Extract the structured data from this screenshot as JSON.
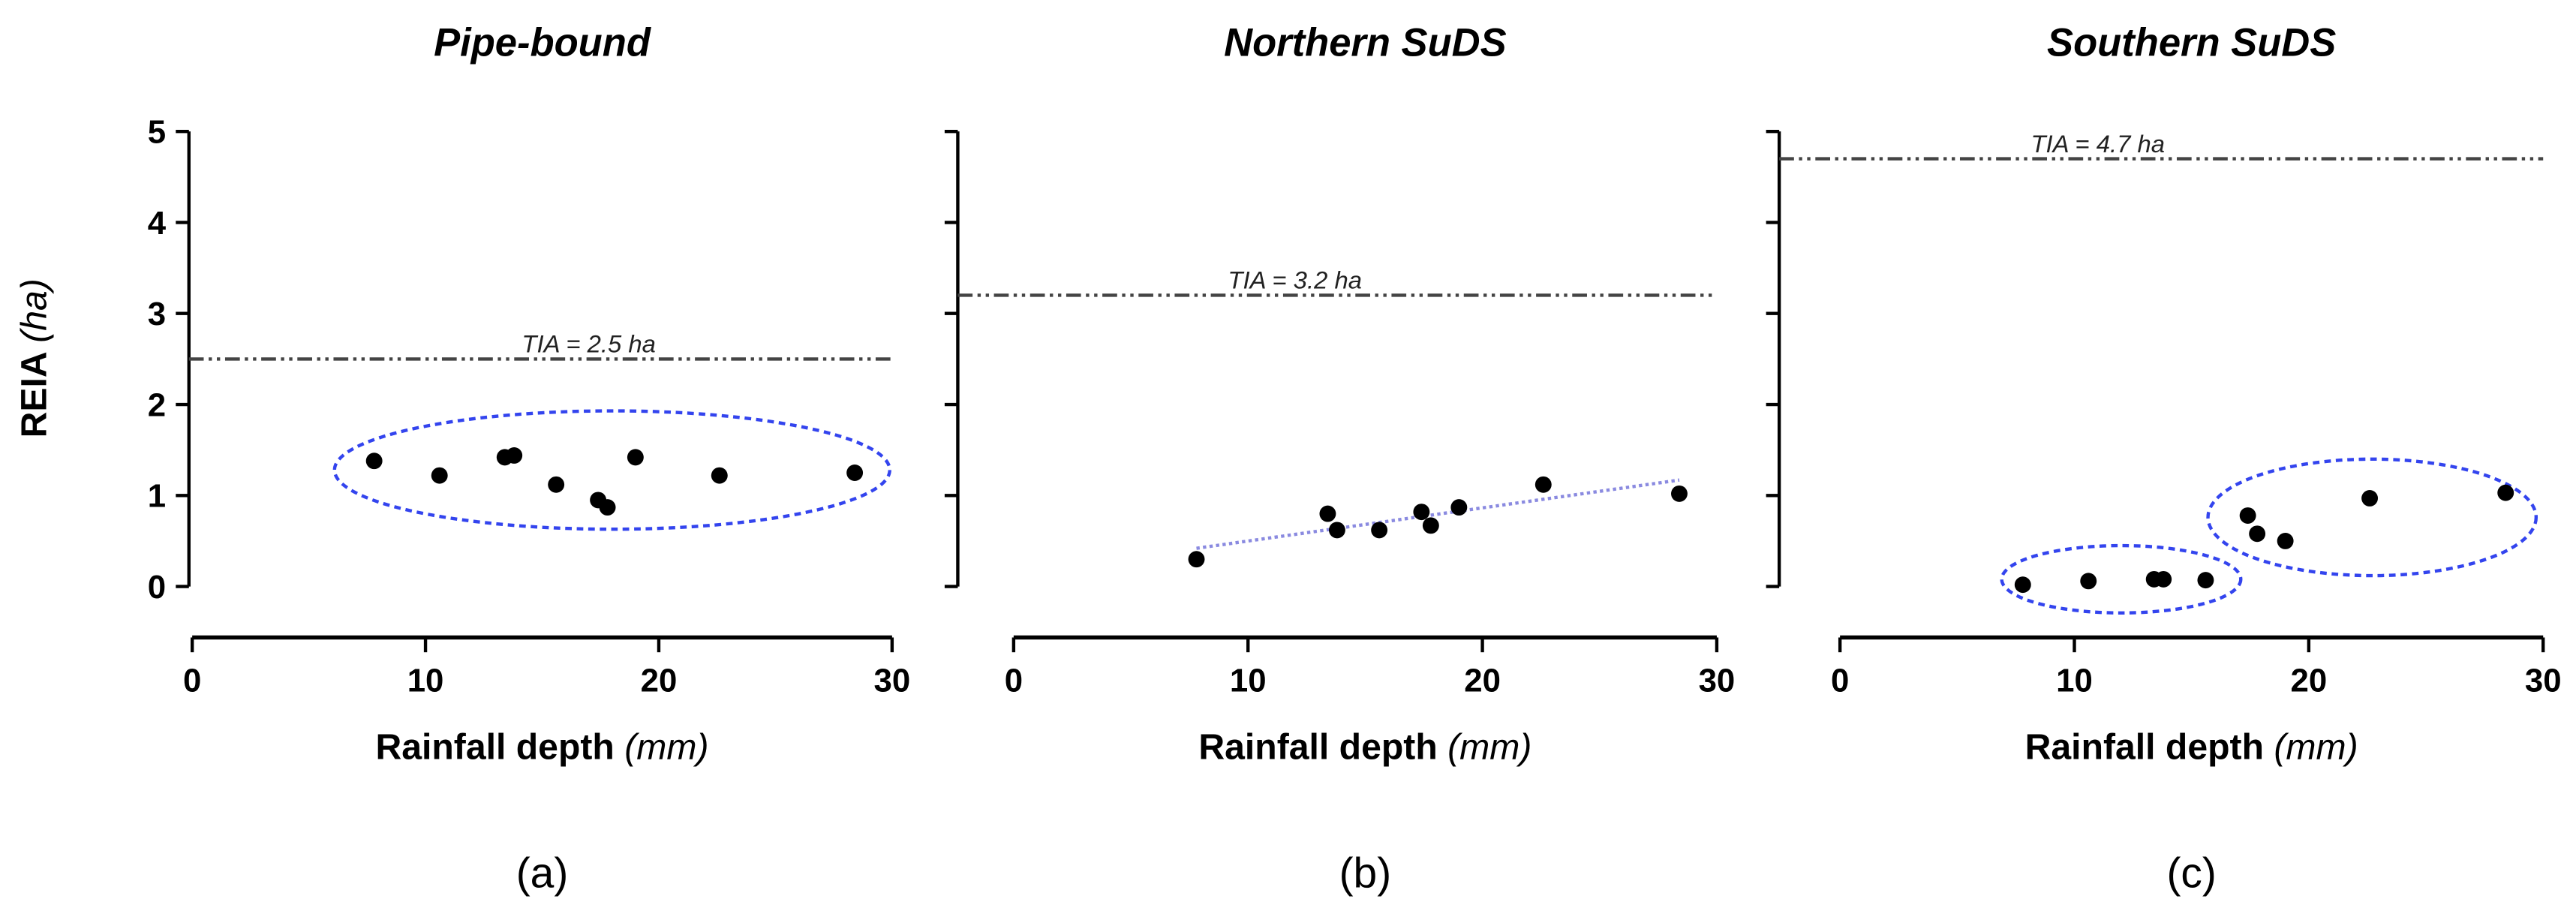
{
  "figure": {
    "y_axis_label": "REIA",
    "y_axis_unit": "(ha)"
  },
  "colors": {
    "points": "#000000",
    "axis": "#000000",
    "tia_line": "#444444",
    "cluster": "#3344ee",
    "trend": "#8a8ae0"
  },
  "chart_data": [
    {
      "type": "scatter",
      "panel_label": "(a)",
      "title": "Pipe-bound",
      "xlabel": "Rainfall depth",
      "xlabel_unit": "(mm)",
      "ylabel": "REIA (ha)",
      "xlim": [
        0,
        30
      ],
      "ylim": [
        0,
        5
      ],
      "xticks": [
        0,
        10,
        20,
        30
      ],
      "yticks": [
        0,
        1,
        2,
        3,
        4,
        5
      ],
      "show_y_tick_labels": true,
      "tia": {
        "value": 2.5,
        "label": "TIA = 2.5 ha",
        "label_x": 17
      },
      "points": [
        {
          "x": 7.8,
          "y": 1.38
        },
        {
          "x": 10.6,
          "y": 1.22
        },
        {
          "x": 13.4,
          "y": 1.42
        },
        {
          "x": 13.8,
          "y": 1.44
        },
        {
          "x": 15.6,
          "y": 1.12
        },
        {
          "x": 17.4,
          "y": 0.95
        },
        {
          "x": 17.8,
          "y": 0.87
        },
        {
          "x": 19.0,
          "y": 1.42
        },
        {
          "x": 22.6,
          "y": 1.22
        },
        {
          "x": 28.4,
          "y": 1.25
        }
      ],
      "clusters": [
        {
          "cx": 18.0,
          "cy": 1.28,
          "rx": 11.9,
          "ry": 0.65
        }
      ],
      "trend": null
    },
    {
      "type": "scatter",
      "panel_label": "(b)",
      "title": "Northern SuDS",
      "xlabel": "Rainfall depth",
      "xlabel_unit": "(mm)",
      "ylabel": "REIA (ha)",
      "xlim": [
        0,
        30
      ],
      "ylim": [
        0,
        5
      ],
      "xticks": [
        0,
        10,
        20,
        30
      ],
      "yticks": [
        0,
        1,
        2,
        3,
        4,
        5
      ],
      "show_y_tick_labels": false,
      "tia": {
        "value": 3.2,
        "label": "TIA = 3.2 ha",
        "label_x": 12
      },
      "points": [
        {
          "x": 7.8,
          "y": 0.3
        },
        {
          "x": 13.4,
          "y": 0.8
        },
        {
          "x": 13.8,
          "y": 0.62
        },
        {
          "x": 15.6,
          "y": 0.62
        },
        {
          "x": 17.4,
          "y": 0.82
        },
        {
          "x": 17.8,
          "y": 0.67
        },
        {
          "x": 19.0,
          "y": 0.87
        },
        {
          "x": 22.6,
          "y": 1.12
        },
        {
          "x": 28.4,
          "y": 1.02
        }
      ],
      "clusters": [],
      "trend": {
        "x1": 7.8,
        "y1": 0.42,
        "x2": 28.4,
        "y2": 1.17
      }
    },
    {
      "type": "scatter",
      "panel_label": "(c)",
      "title": "Southern SuDS",
      "xlabel": "Rainfall depth",
      "xlabel_unit": "(mm)",
      "ylabel": "REIA (ha)",
      "xlim": [
        0,
        30
      ],
      "ylim": [
        0,
        5
      ],
      "xticks": [
        0,
        10,
        20,
        30
      ],
      "yticks": [
        0,
        1,
        2,
        3,
        4,
        5
      ],
      "show_y_tick_labels": false,
      "tia": {
        "value": 4.7,
        "label": "TIA = 4.7 ha",
        "label_x": 11
      },
      "points": [
        {
          "x": 7.8,
          "y": 0.02
        },
        {
          "x": 10.6,
          "y": 0.06
        },
        {
          "x": 13.4,
          "y": 0.08
        },
        {
          "x": 13.8,
          "y": 0.08
        },
        {
          "x": 15.6,
          "y": 0.07
        },
        {
          "x": 17.4,
          "y": 0.78
        },
        {
          "x": 17.8,
          "y": 0.58
        },
        {
          "x": 19.0,
          "y": 0.5
        },
        {
          "x": 22.6,
          "y": 0.97
        },
        {
          "x": 28.4,
          "y": 1.03
        }
      ],
      "clusters": [
        {
          "cx": 12.0,
          "cy": 0.08,
          "rx": 5.1,
          "ry": 0.37
        },
        {
          "cx": 22.7,
          "cy": 0.76,
          "rx": 7.0,
          "ry": 0.64
        }
      ],
      "trend": null
    }
  ]
}
